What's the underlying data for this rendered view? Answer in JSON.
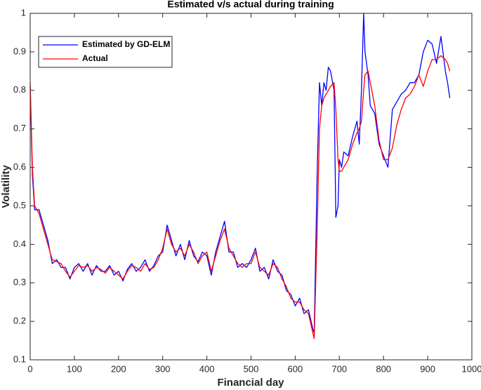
{
  "chart_data": {
    "type": "line",
    "title": "Estimated v/s actual during training",
    "xlabel": "Financial day",
    "ylabel": "Volatility",
    "x": [
      0,
      5,
      10,
      20,
      30,
      40,
      50,
      60,
      70,
      80,
      90,
      100,
      110,
      120,
      130,
      140,
      150,
      160,
      170,
      180,
      190,
      200,
      210,
      220,
      230,
      240,
      250,
      260,
      270,
      280,
      290,
      300,
      310,
      320,
      330,
      340,
      350,
      360,
      370,
      380,
      390,
      400,
      410,
      420,
      430,
      440,
      450,
      460,
      470,
      480,
      490,
      500,
      510,
      520,
      530,
      540,
      550,
      560,
      570,
      580,
      590,
      600,
      610,
      620,
      630,
      640,
      643,
      650,
      655,
      660,
      665,
      670,
      675,
      680,
      688,
      692,
      697,
      700,
      705,
      710,
      720,
      730,
      740,
      745,
      750,
      755,
      758,
      765,
      770,
      780,
      790,
      800,
      810,
      820,
      830,
      840,
      850,
      860,
      870,
      880,
      890,
      900,
      910,
      920,
      930,
      940,
      945,
      950
    ],
    "series": [
      {
        "name": "Estimated by GD-ELM",
        "color": "#0000ff",
        "values": [
          0.81,
          0.58,
          0.49,
          0.49,
          0.45,
          0.41,
          0.35,
          0.36,
          0.34,
          0.34,
          0.31,
          0.34,
          0.35,
          0.33,
          0.35,
          0.32,
          0.345,
          0.33,
          0.33,
          0.345,
          0.32,
          0.33,
          0.305,
          0.335,
          0.35,
          0.33,
          0.34,
          0.36,
          0.33,
          0.345,
          0.37,
          0.38,
          0.45,
          0.41,
          0.37,
          0.4,
          0.36,
          0.41,
          0.37,
          0.355,
          0.38,
          0.37,
          0.32,
          0.38,
          0.42,
          0.46,
          0.38,
          0.38,
          0.34,
          0.35,
          0.34,
          0.36,
          0.39,
          0.33,
          0.34,
          0.31,
          0.36,
          0.33,
          0.32,
          0.28,
          0.27,
          0.24,
          0.26,
          0.22,
          0.23,
          0.18,
          0.17,
          0.6,
          0.82,
          0.76,
          0.82,
          0.8,
          0.86,
          0.85,
          0.8,
          0.47,
          0.5,
          0.62,
          0.6,
          0.64,
          0.63,
          0.68,
          0.72,
          0.66,
          0.8,
          1.0,
          0.9,
          0.84,
          0.76,
          0.74,
          0.66,
          0.63,
          0.6,
          0.75,
          0.77,
          0.79,
          0.8,
          0.82,
          0.82,
          0.84,
          0.9,
          0.93,
          0.92,
          0.87,
          0.94,
          0.85,
          0.82,
          0.78
        ]
      },
      {
        "name": "Actual",
        "color": "#ff0000",
        "values": [
          0.82,
          0.6,
          0.5,
          0.48,
          0.44,
          0.4,
          0.36,
          0.355,
          0.35,
          0.33,
          0.315,
          0.33,
          0.345,
          0.34,
          0.345,
          0.33,
          0.34,
          0.335,
          0.325,
          0.34,
          0.33,
          0.32,
          0.31,
          0.33,
          0.345,
          0.34,
          0.33,
          0.35,
          0.335,
          0.34,
          0.36,
          0.39,
          0.44,
          0.4,
          0.38,
          0.39,
          0.37,
          0.4,
          0.38,
          0.35,
          0.37,
          0.38,
          0.33,
          0.37,
          0.41,
          0.44,
          0.39,
          0.37,
          0.35,
          0.34,
          0.35,
          0.35,
          0.38,
          0.34,
          0.33,
          0.32,
          0.35,
          0.34,
          0.31,
          0.29,
          0.26,
          0.25,
          0.25,
          0.23,
          0.22,
          0.17,
          0.155,
          0.45,
          0.7,
          0.76,
          0.78,
          0.79,
          0.8,
          0.81,
          0.82,
          0.75,
          0.62,
          0.59,
          0.59,
          0.6,
          0.62,
          0.66,
          0.69,
          0.7,
          0.72,
          0.8,
          0.84,
          0.85,
          0.82,
          0.76,
          0.67,
          0.62,
          0.62,
          0.65,
          0.71,
          0.75,
          0.78,
          0.79,
          0.81,
          0.84,
          0.81,
          0.85,
          0.88,
          0.88,
          0.89,
          0.88,
          0.87,
          0.85
        ]
      }
    ],
    "xlim": [
      0,
      1000
    ],
    "xticks": [
      0,
      100,
      200,
      300,
      400,
      500,
      600,
      700,
      800,
      900,
      1000
    ],
    "ylim": [
      0.1,
      1
    ],
    "yticks": [
      0.1,
      0.2,
      0.3,
      0.4,
      0.5,
      0.6,
      0.7,
      0.8,
      0.9,
      1
    ],
    "legend": "upper left",
    "grid": false
  }
}
